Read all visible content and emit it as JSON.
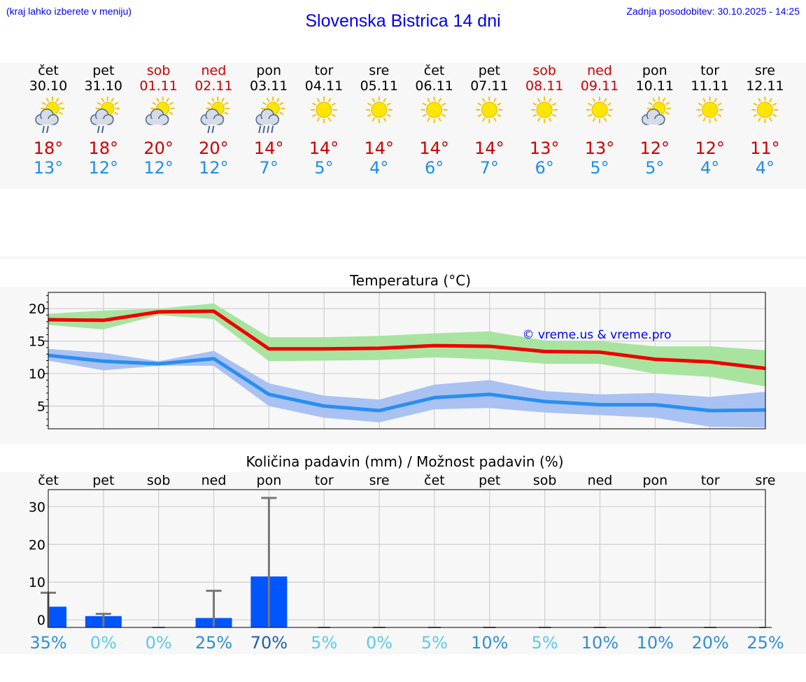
{
  "header": {
    "note": "(kraj lahko izberete v meniju)",
    "title": "Slovenska Bistrica 14 dni",
    "updated": "Zadnja posodobitev: 30.10.2025 - 14:25"
  },
  "colors": {
    "weekend": "#cc0000",
    "weekday": "#000000",
    "tmax": "#cc0000",
    "tmin": "#1e8fe8",
    "link": "#0000ee"
  },
  "days": [
    {
      "dow": "čet",
      "date": "30.10",
      "weekend": false,
      "icon": "sun-cloud-rain",
      "tmax": "18°",
      "tmin": "13°"
    },
    {
      "dow": "pet",
      "date": "31.10",
      "weekend": false,
      "icon": "sun-cloud-rain",
      "tmax": "18°",
      "tmin": "12°"
    },
    {
      "dow": "sob",
      "date": "01.11",
      "weekend": true,
      "icon": "sun-cloud",
      "tmax": "20°",
      "tmin": "12°"
    },
    {
      "dow": "ned",
      "date": "02.11",
      "weekend": true,
      "icon": "sun-cloud-rain",
      "tmax": "20°",
      "tmin": "12°"
    },
    {
      "dow": "pon",
      "date": "03.11",
      "weekend": false,
      "icon": "sun-cloud-heavy-rain",
      "tmax": "14°",
      "tmin": "7°"
    },
    {
      "dow": "tor",
      "date": "04.11",
      "weekend": false,
      "icon": "sun",
      "tmax": "14°",
      "tmin": "5°"
    },
    {
      "dow": "sre",
      "date": "05.11",
      "weekend": false,
      "icon": "sun",
      "tmax": "14°",
      "tmin": "4°"
    },
    {
      "dow": "čet",
      "date": "06.11",
      "weekend": false,
      "icon": "sun",
      "tmax": "14°",
      "tmin": "6°"
    },
    {
      "dow": "pet",
      "date": "07.11",
      "weekend": false,
      "icon": "sun",
      "tmax": "14°",
      "tmin": "7°"
    },
    {
      "dow": "sob",
      "date": "08.11",
      "weekend": true,
      "icon": "sun",
      "tmax": "13°",
      "tmin": "6°"
    },
    {
      "dow": "ned",
      "date": "09.11",
      "weekend": true,
      "icon": "sun",
      "tmax": "13°",
      "tmin": "5°"
    },
    {
      "dow": "pon",
      "date": "10.11",
      "weekend": false,
      "icon": "sun-cloud",
      "tmax": "12°",
      "tmin": "5°"
    },
    {
      "dow": "tor",
      "date": "11.11",
      "weekend": false,
      "icon": "sun",
      "tmax": "12°",
      "tmin": "4°"
    },
    {
      "dow": "sre",
      "date": "12.11",
      "weekend": false,
      "icon": "sun",
      "tmax": "11°",
      "tmin": "4°"
    }
  ],
  "chart_data": [
    {
      "type": "line",
      "title": "Temperatura (°C)",
      "watermark": "© vreme.us & vreme.pro",
      "x": [
        0,
        1,
        2,
        3,
        4,
        5,
        6,
        7,
        8,
        9,
        10,
        11,
        12,
        13
      ],
      "ylim": [
        1.5,
        22.5
      ],
      "yticks": [
        5,
        10,
        15,
        20
      ],
      "grid": true,
      "series": [
        {
          "name": "max",
          "color": "#ee0000",
          "values": [
            18.3,
            18.2,
            19.5,
            19.6,
            13.8,
            13.8,
            13.9,
            14.3,
            14.2,
            13.4,
            13.3,
            12.2,
            11.8,
            10.8
          ]
        },
        {
          "name": "max-range-low",
          "values": [
            17.5,
            16.8,
            19.0,
            18.4,
            11.9,
            12.0,
            12.1,
            12.5,
            12.2,
            11.5,
            11.5,
            10.0,
            9.5,
            8.0
          ]
        },
        {
          "name": "max-range-high",
          "values": [
            19.2,
            19.7,
            20.0,
            20.8,
            15.6,
            15.6,
            15.8,
            16.2,
            16.5,
            15.1,
            15.0,
            14.2,
            14.2,
            13.6
          ]
        },
        {
          "name": "min",
          "color": "#2a8ef0",
          "values": [
            12.8,
            11.9,
            11.5,
            12.3,
            6.8,
            5.0,
            4.3,
            6.3,
            6.8,
            5.7,
            5.2,
            5.2,
            4.3,
            4.4
          ]
        },
        {
          "name": "min-range-low",
          "values": [
            12.0,
            10.5,
            11.2,
            11.2,
            5.0,
            3.2,
            2.5,
            4.5,
            4.7,
            4.0,
            3.6,
            3.2,
            1.8,
            1.7
          ]
        },
        {
          "name": "min-range-high",
          "values": [
            13.8,
            13.2,
            11.9,
            13.5,
            8.5,
            6.6,
            6.0,
            8.3,
            9.0,
            7.3,
            6.8,
            7.0,
            6.4,
            7.2
          ]
        }
      ]
    },
    {
      "type": "bar",
      "title": "Količina padavin (mm) / Možnost padavin (%)",
      "categories": [
        "čet",
        "pet",
        "sob",
        "ned",
        "pon",
        "tor",
        "sre",
        "čet",
        "pet",
        "sob",
        "ned",
        "pon",
        "tor",
        "sre"
      ],
      "ylim": [
        -2,
        34.5
      ],
      "yticks": [
        0,
        10,
        20,
        30
      ],
      "grid": true,
      "series": [
        {
          "name": "amount_mm",
          "color": "#0055ff",
          "values": [
            3.5,
            1.0,
            0,
            0.5,
            11.5,
            0,
            0,
            0,
            0,
            0,
            0,
            0,
            0,
            0
          ]
        },
        {
          "name": "amount_max_mm",
          "color": "#777777",
          "values": [
            7.2,
            1.6,
            0,
            7.7,
            32.3,
            0,
            0,
            0,
            0,
            0,
            0,
            0,
            0,
            0
          ]
        }
      ],
      "probability": [
        "35%",
        "0%",
        "0%",
        "25%",
        "70%",
        "5%",
        "0%",
        "5%",
        "10%",
        "5%",
        "10%",
        "10%",
        "20%",
        "25%"
      ],
      "probability_values": [
        35,
        0,
        0,
        25,
        70,
        5,
        0,
        5,
        10,
        5,
        10,
        10,
        20,
        25
      ]
    }
  ]
}
